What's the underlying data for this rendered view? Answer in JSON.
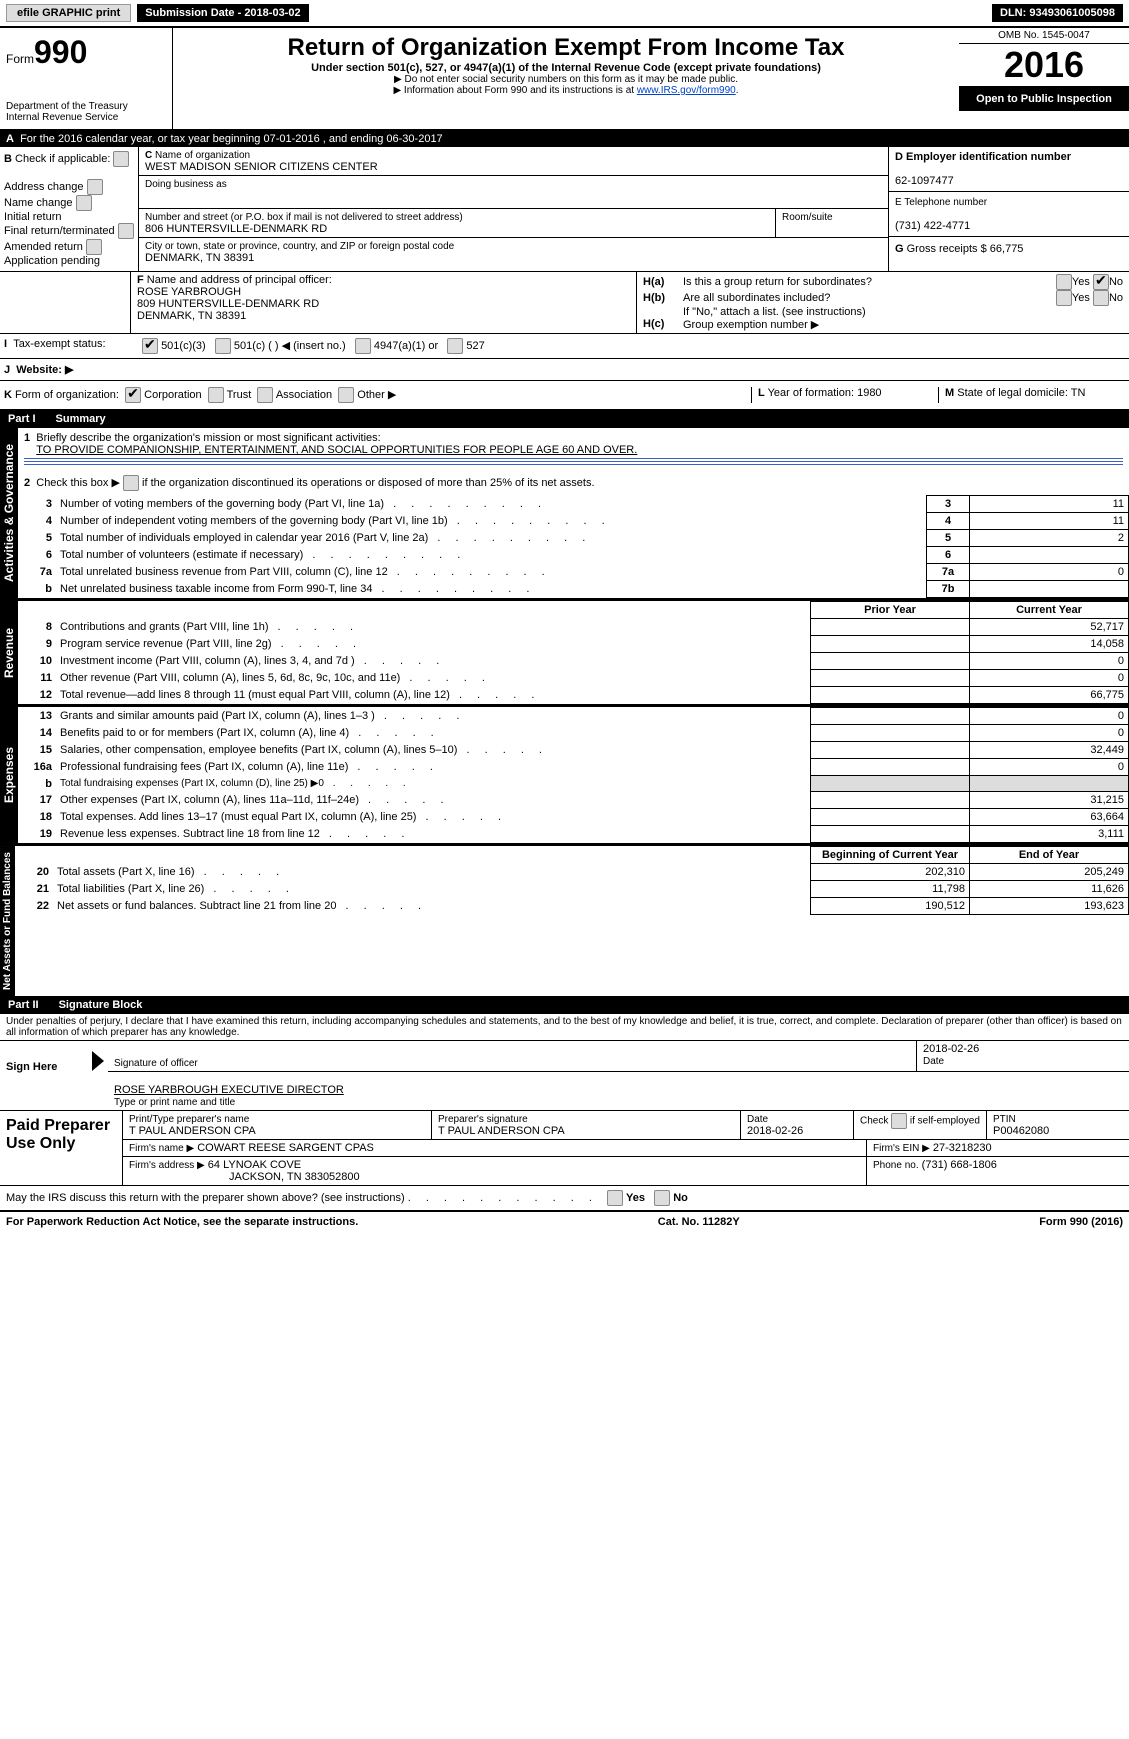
{
  "topbar": {
    "efile": "efile GRAPHIC print",
    "submission_label": "Submission Date - 2018-03-02",
    "dln_label": "DLN: 93493061005098"
  },
  "header": {
    "form_word": "Form",
    "form_num": "990",
    "dept1": "Department of the Treasury",
    "dept2": "Internal Revenue Service",
    "title": "Return of Organization Exempt From Income Tax",
    "sub1": "Under section 501(c), 527, or 4947(a)(1) of the Internal Revenue Code (except private foundations)",
    "sub2": "▶ Do not enter social security numbers on this form as it may be made public.",
    "sub3_pre": "▶ Information about Form 990 and its instructions is at ",
    "sub3_link": "www.IRS.gov/form990",
    "omb": "OMB No. 1545-0047",
    "year": "2016",
    "open": "Open to Public Inspection"
  },
  "sectionA": {
    "label": "For the 2016 calendar year, or tax year beginning 07-01-2016",
    "ending": ", and ending 06-30-2017"
  },
  "sectionB": {
    "check_label": "Check if applicable:",
    "addr_change": "Address change",
    "name_change": "Name change",
    "initial": "Initial return",
    "final": "Final return/terminated",
    "amended": "Amended return",
    "pending": "Application pending"
  },
  "sectionC": {
    "name_label": "Name of organization",
    "name": "WEST MADISON SENIOR CITIZENS CENTER",
    "dba_label": "Doing business as",
    "street_label": "Number and street (or P.O. box if mail is not delivered to street address)",
    "street": "806 HUNTERSVILLE-DENMARK RD",
    "room_label": "Room/suite",
    "city_label": "City or town, state or province, country, and ZIP or foreign postal code",
    "city": "DENMARK, TN  38391"
  },
  "sectionD": {
    "label": "Employer identification number",
    "value": "62-1097477"
  },
  "sectionE": {
    "label": "Telephone number",
    "value": "(731) 422-4771"
  },
  "sectionF": {
    "label": "Name and address of principal officer:",
    "name": "ROSE YARBROUGH",
    "street": "809 HUNTERSVILLE-DENMARK RD",
    "city": "DENMARK, TN  38391"
  },
  "sectionG": {
    "label": "Gross receipts $",
    "value": "66,775"
  },
  "sectionH": {
    "ha": "Is this a group return for subordinates?",
    "hb": "Are all subordinates included?",
    "hb_note": "If \"No,\" attach a list. (see instructions)",
    "hc": "Group exemption number ▶",
    "yes": "Yes",
    "no": "No"
  },
  "sectionI": {
    "label": "Tax-exempt status:",
    "c3": "501(c)(3)",
    "c": "501(c) (   ) ◀ (insert no.)",
    "a1": "4947(a)(1) or",
    "s527": "527"
  },
  "sectionJ": {
    "label": "Website: ▶"
  },
  "sectionK": {
    "label": "Form of organization:",
    "corp": "Corporation",
    "trust": "Trust",
    "assoc": "Association",
    "other": "Other ▶"
  },
  "sectionL": {
    "label": "Year of formation:",
    "value": "1980"
  },
  "sectionM": {
    "label": "State of legal domicile:",
    "value": "TN"
  },
  "part1": {
    "header": "Part I",
    "title": "Summary",
    "vert_act": "Activities & Governance",
    "vert_rev": "Revenue",
    "vert_exp": "Expenses",
    "vert_net": "Net Assets or Fund Balances",
    "line1_label": "Briefly describe the organization's mission or most significant activities:",
    "line1_value": "TO PROVIDE COMPANIONSHIP, ENTERTAINMENT, AND SOCIAL OPPORTUNITIES FOR PEOPLE AGE 60 AND OVER.",
    "line2": "Check this box ▶        if the organization discontinued its operations or disposed of more than 25% of its net assets.",
    "lines_gov": [
      {
        "n": "3",
        "label": "Number of voting members of the governing body (Part VI, line 1a)",
        "val": "11"
      },
      {
        "n": "4",
        "label": "Number of independent voting members of the governing body (Part VI, line 1b)",
        "val": "11"
      },
      {
        "n": "5",
        "label": "Total number of individuals employed in calendar year 2016 (Part V, line 2a)",
        "val": "2"
      },
      {
        "n": "6",
        "label": "Total number of volunteers (estimate if necessary)",
        "val": ""
      },
      {
        "n": "7a",
        "label": "Total unrelated business revenue from Part VIII, column (C), line 12",
        "val": "0"
      },
      {
        "n": "b",
        "label": "Net unrelated business taxable income from Form 990-T, line 34",
        "val": "",
        "cellnum": "7b"
      }
    ],
    "col_prior": "Prior Year",
    "col_current": "Current Year",
    "lines_rev": [
      {
        "n": "8",
        "label": "Contributions and grants (Part VIII, line 1h)",
        "prior": "",
        "cur": "52,717"
      },
      {
        "n": "9",
        "label": "Program service revenue (Part VIII, line 2g)",
        "prior": "",
        "cur": "14,058"
      },
      {
        "n": "10",
        "label": "Investment income (Part VIII, column (A), lines 3, 4, and 7d )",
        "prior": "",
        "cur": "0"
      },
      {
        "n": "11",
        "label": "Other revenue (Part VIII, column (A), lines 5, 6d, 8c, 9c, 10c, and 11e)",
        "prior": "",
        "cur": "0"
      },
      {
        "n": "12",
        "label": "Total revenue—add lines 8 through 11 (must equal Part VIII, column (A), line 12)",
        "prior": "",
        "cur": "66,775"
      }
    ],
    "lines_exp": [
      {
        "n": "13",
        "label": "Grants and similar amounts paid (Part IX, column (A), lines 1–3 )",
        "prior": "",
        "cur": "0"
      },
      {
        "n": "14",
        "label": "Benefits paid to or for members (Part IX, column (A), line 4)",
        "prior": "",
        "cur": "0"
      },
      {
        "n": "15",
        "label": "Salaries, other compensation, employee benefits (Part IX, column (A), lines 5–10)",
        "prior": "",
        "cur": "32,449"
      },
      {
        "n": "16a",
        "label": "Professional fundraising fees (Part IX, column (A), line 11e)",
        "prior": "",
        "cur": "0"
      },
      {
        "n": "b",
        "label": "Total fundraising expenses (Part IX, column (D), line 25) ▶0",
        "prior": "shaded",
        "cur": "shaded",
        "small": true
      },
      {
        "n": "17",
        "label": "Other expenses (Part IX, column (A), lines 11a–11d, 11f–24e)",
        "prior": "",
        "cur": "31,215"
      },
      {
        "n": "18",
        "label": "Total expenses. Add lines 13–17 (must equal Part IX, column (A), line 25)",
        "prior": "",
        "cur": "63,664"
      },
      {
        "n": "19",
        "label": "Revenue less expenses. Subtract line 18 from line 12",
        "prior": "",
        "cur": "3,111"
      }
    ],
    "col_begin": "Beginning of Current Year",
    "col_end": "End of Year",
    "lines_net": [
      {
        "n": "20",
        "label": "Total assets (Part X, line 16)",
        "prior": "202,310",
        "cur": "205,249"
      },
      {
        "n": "21",
        "label": "Total liabilities (Part X, line 26)",
        "prior": "11,798",
        "cur": "11,626"
      },
      {
        "n": "22",
        "label": "Net assets or fund balances. Subtract line 21 from line 20",
        "prior": "190,512",
        "cur": "193,623"
      }
    ]
  },
  "part2": {
    "header": "Part II",
    "title": "Signature Block",
    "penalty": "Under penalties of perjury, I declare that I have examined this return, including accompanying schedules and statements, and to the best of my knowledge and belief, it is true, correct, and complete. Declaration of preparer (other than officer) is based on all information of which preparer has any knowledge.",
    "sign_here": "Sign Here",
    "sig_officer": "Signature of officer",
    "sig_date": "2018-02-26",
    "date_label": "Date",
    "officer_name": "ROSE YARBROUGH  EXECUTIVE DIRECTOR",
    "type_name": "Type or print name and title",
    "paid": "Paid Preparer Use Only",
    "prep_name_label": "Print/Type preparer's name",
    "prep_name": "T PAUL ANDERSON CPA",
    "prep_sig_label": "Preparer's signature",
    "prep_sig": "T PAUL ANDERSON CPA",
    "prep_date_label": "Date",
    "prep_date": "2018-02-26",
    "check_if": "Check        if self-employed",
    "ptin_label": "PTIN",
    "ptin": "P00462080",
    "firm_name_label": "Firm's name      ▶",
    "firm_name": "COWART REESE SARGENT CPAS",
    "firm_ein_label": "Firm's EIN ▶",
    "firm_ein": "27-3218230",
    "firm_addr_label": "Firm's address ▶",
    "firm_addr": "64 LYNOAK COVE",
    "firm_addr2": "JACKSON, TN  383052800",
    "phone_label": "Phone no.",
    "phone": "(731) 668-1806",
    "discuss": "May the IRS discuss this return with the preparer shown above? (see instructions)"
  },
  "footer": {
    "paperwork": "For Paperwork Reduction Act Notice, see the separate instructions.",
    "catno": "Cat. No. 11282Y",
    "form": "Form 990 (2016)"
  }
}
